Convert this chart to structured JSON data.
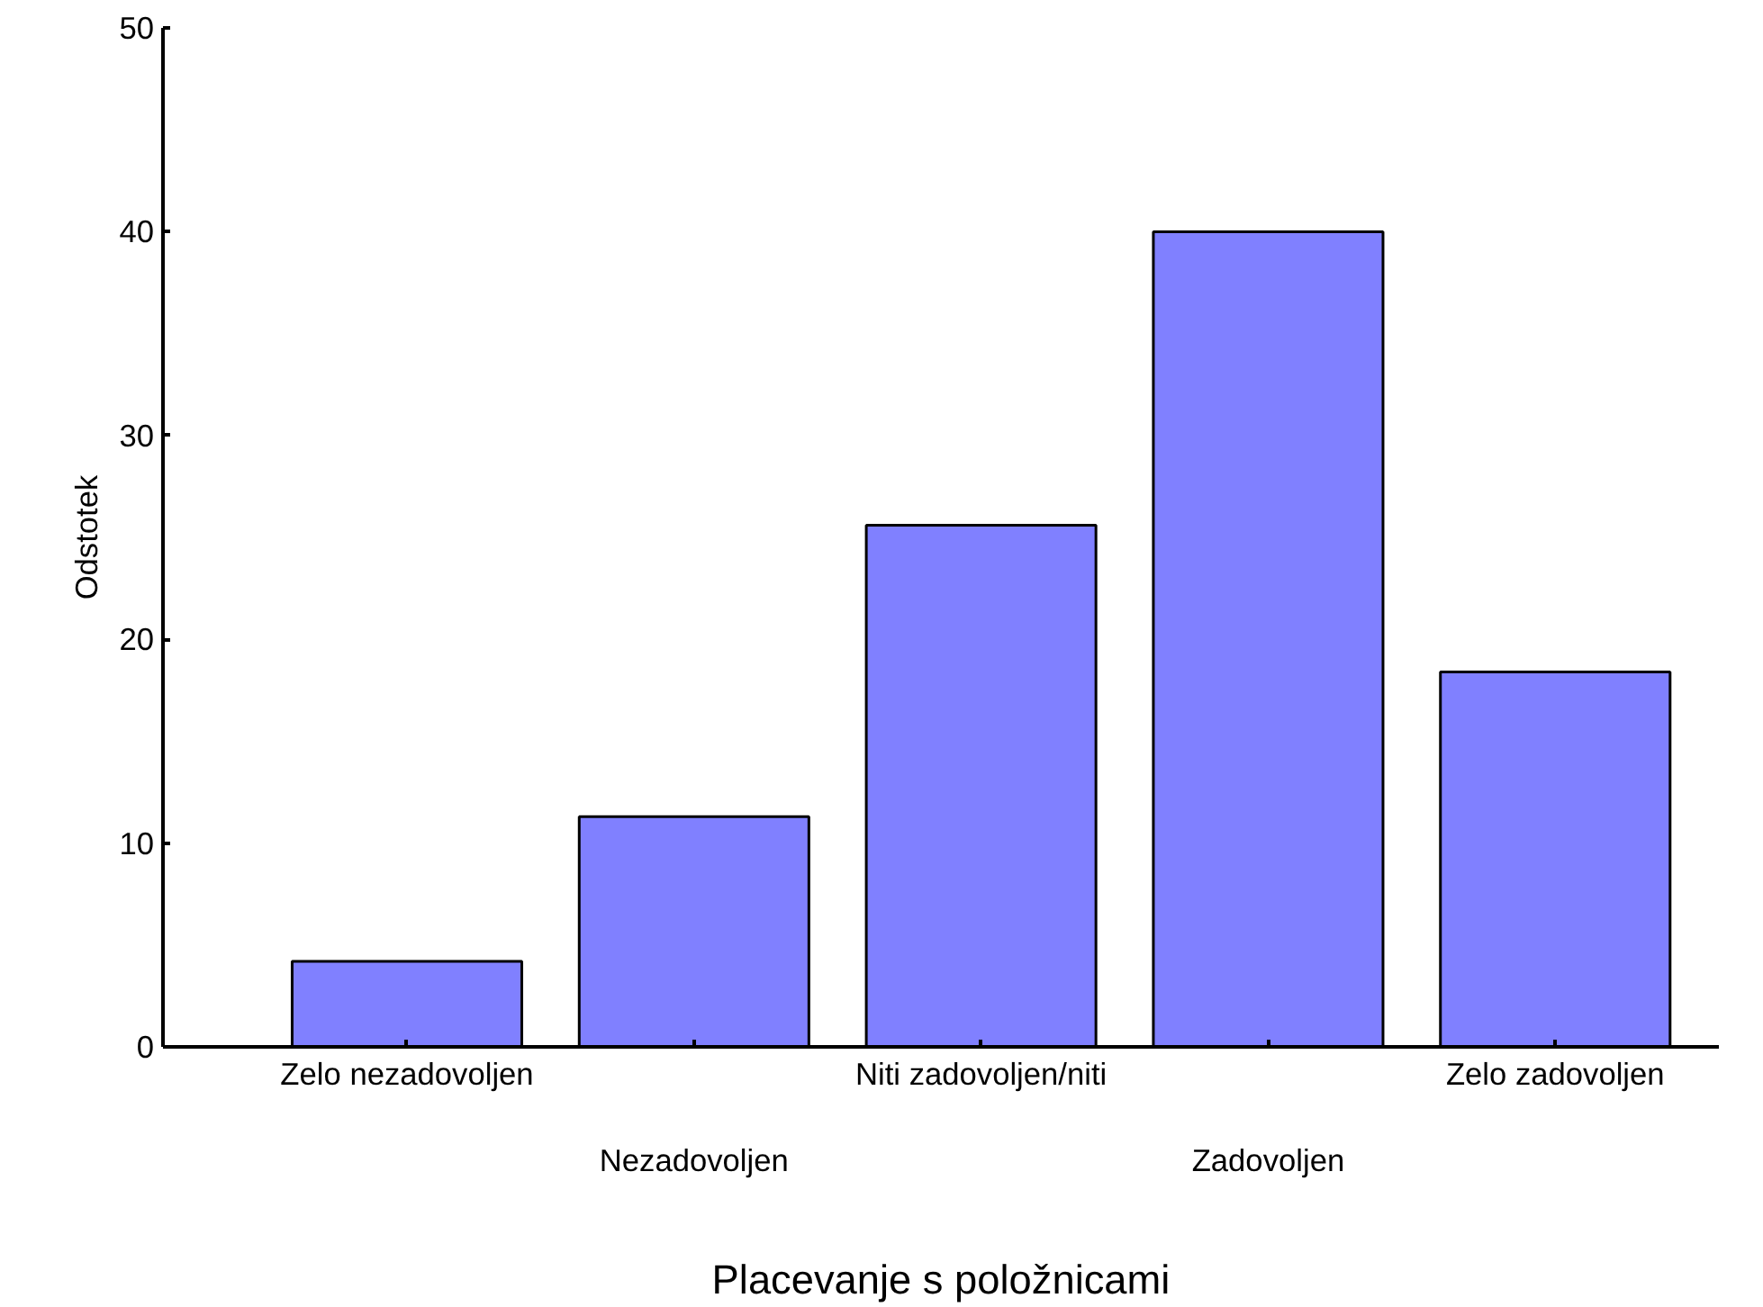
{
  "chart_data": {
    "type": "bar",
    "categories": [
      "Zelo nezadovoljen",
      "Nezadovoljen",
      "Niti zadovoljen/niti",
      "Zadovoljen",
      "Zelo zadovoljen"
    ],
    "values": [
      4.2,
      11.3,
      25.6,
      40.0,
      18.4
    ],
    "color": "#8080ff",
    "xlabel": "Placevanje s položnicami",
    "ylabel": "Odstotek",
    "ylim": [
      0,
      50
    ],
    "yticks": [
      0,
      10,
      20,
      30,
      40,
      50
    ],
    "grid": false
  }
}
